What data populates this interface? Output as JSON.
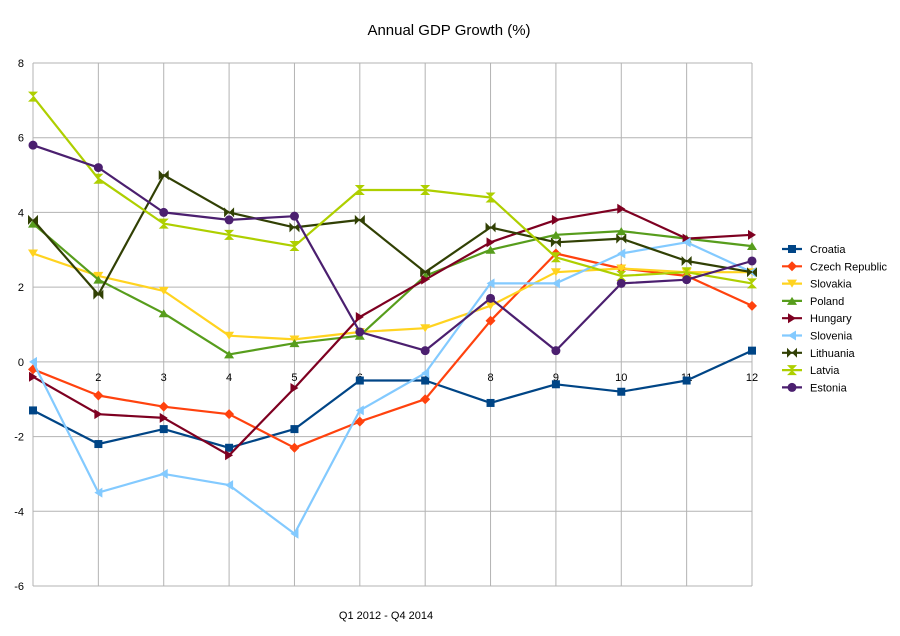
{
  "chart_data": {
    "type": "line",
    "title": "Annual GDP Growth (%)",
    "xlabel": "Q1 2012 - Q4 2014",
    "ylabel": "",
    "x": [
      1,
      2,
      3,
      4,
      5,
      6,
      7,
      8,
      9,
      10,
      11,
      12
    ],
    "xlim": [
      1,
      12
    ],
    "ylim": [
      -6,
      8
    ],
    "yticks": [
      -6,
      -4,
      -2,
      0,
      2,
      4,
      6,
      8
    ],
    "xtick_labels": [
      "2",
      "3",
      "4",
      "5",
      "6",
      "7",
      "8",
      "9",
      "10",
      "11",
      "12"
    ],
    "grid": true,
    "legend_position": "right",
    "series": [
      {
        "name": "Croatia",
        "color": "#004586",
        "marker": "square",
        "values": [
          -1.3,
          -2.2,
          -1.8,
          -2.3,
          -1.8,
          -0.5,
          -0.5,
          -1.1,
          -0.6,
          -0.8,
          -0.5,
          0.3
        ]
      },
      {
        "name": "Czech Republic",
        "color": "#ff420e",
        "marker": "diamond",
        "values": [
          -0.2,
          -0.9,
          -1.2,
          -1.4,
          -2.3,
          -1.6,
          -1.0,
          1.1,
          2.9,
          2.5,
          2.3,
          1.5
        ]
      },
      {
        "name": "Slovakia",
        "color": "#ffd320",
        "marker": "triangle-down",
        "values": [
          2.9,
          2.3,
          1.9,
          0.7,
          0.6,
          0.8,
          0.9,
          1.5,
          2.4,
          2.5,
          2.4,
          2.4
        ]
      },
      {
        "name": "Poland",
        "color": "#579d1c",
        "marker": "triangle-up",
        "values": [
          3.7,
          2.2,
          1.3,
          0.2,
          0.5,
          0.7,
          2.3,
          3.0,
          3.4,
          3.5,
          3.3,
          3.1
        ]
      },
      {
        "name": "Hungary",
        "color": "#7e0021",
        "marker": "triangle-right",
        "values": [
          -0.4,
          -1.4,
          -1.5,
          -2.5,
          -0.7,
          1.2,
          2.2,
          3.2,
          3.8,
          4.1,
          3.3,
          3.4
        ]
      },
      {
        "name": "Slovenia",
        "color": "#83caff",
        "marker": "triangle-left",
        "values": [
          0.0,
          -3.5,
          -3.0,
          -3.3,
          -4.6,
          -1.3,
          -0.3,
          2.1,
          2.1,
          2.9,
          3.2,
          2.4
        ]
      },
      {
        "name": "Lithuania",
        "color": "#314004",
        "marker": "bowtie",
        "values": [
          3.8,
          1.8,
          5.0,
          4.0,
          3.6,
          3.8,
          2.4,
          3.6,
          3.2,
          3.3,
          2.7,
          2.4
        ]
      },
      {
        "name": "Latvia",
        "color": "#aecf00",
        "marker": "hourglass",
        "values": [
          7.1,
          4.9,
          3.7,
          3.4,
          3.1,
          4.6,
          4.6,
          4.4,
          2.8,
          2.3,
          2.4,
          2.1
        ]
      },
      {
        "name": "Estonia",
        "color": "#4b1f6f",
        "marker": "circle",
        "values": [
          5.8,
          5.2,
          4.0,
          3.8,
          3.9,
          0.8,
          0.3,
          1.7,
          0.3,
          2.1,
          2.2,
          2.7
        ]
      }
    ]
  }
}
